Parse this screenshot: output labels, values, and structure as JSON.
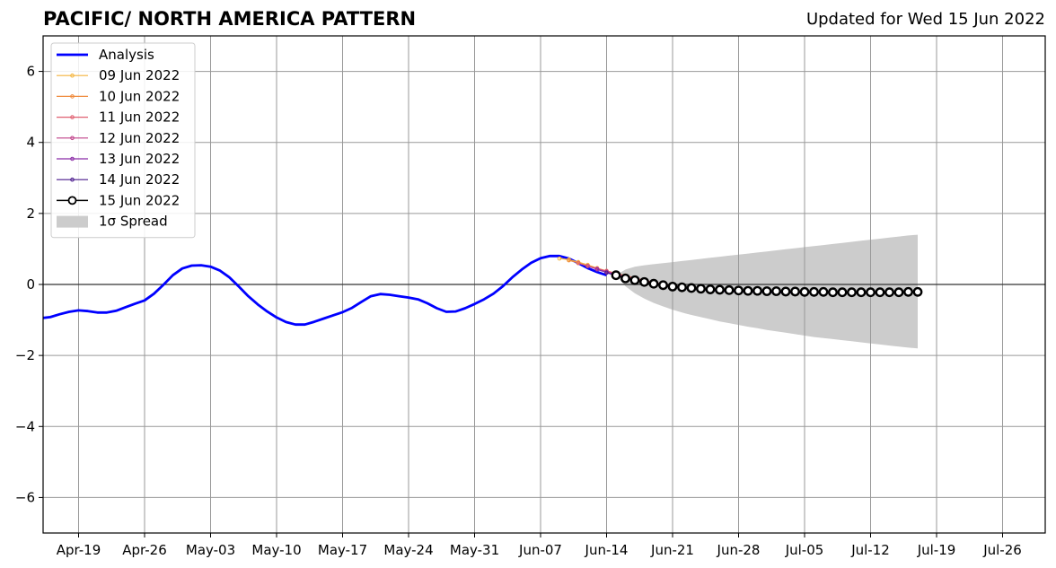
{
  "title": "PACIFIC/ NORTH AMERICA PATTERN",
  "updated": "Updated for Wed 15 Jun 2022",
  "colors": {
    "analysis": "#0000ff",
    "spread": "#cccccc",
    "grid": "#999999",
    "forecast_15": "#000000"
  },
  "chart_data": {
    "type": "line",
    "title": "PACIFIC/ NORTH AMERICA PATTERN",
    "xlabel": "",
    "ylabel": "",
    "xlim": [
      "2022-04-15",
      "2022-07-31"
    ],
    "ylim": [
      -7,
      7
    ],
    "grid": true,
    "legend_position": "top-left",
    "x_ticks": [
      {
        "date": "2022-04-19",
        "label": "Apr-19"
      },
      {
        "date": "2022-04-26",
        "label": "Apr-26"
      },
      {
        "date": "2022-05-03",
        "label": "May-03"
      },
      {
        "date": "2022-05-10",
        "label": "May-10"
      },
      {
        "date": "2022-05-17",
        "label": "May-17"
      },
      {
        "date": "2022-05-24",
        "label": "May-24"
      },
      {
        "date": "2022-05-31",
        "label": "May-31"
      },
      {
        "date": "2022-06-07",
        "label": "Jun-07"
      },
      {
        "date": "2022-06-14",
        "label": "Jun-14"
      },
      {
        "date": "2022-06-21",
        "label": "Jun-21"
      },
      {
        "date": "2022-06-28",
        "label": "Jun-28"
      },
      {
        "date": "2022-07-05",
        "label": "Jul-05"
      },
      {
        "date": "2022-07-12",
        "label": "Jul-12"
      },
      {
        "date": "2022-07-19",
        "label": "Jul-19"
      },
      {
        "date": "2022-07-26",
        "label": "Jul-26"
      }
    ],
    "y_ticks": [
      {
        "value": 6,
        "label": "6"
      },
      {
        "value": 4,
        "label": "4"
      },
      {
        "value": 2,
        "label": "2"
      },
      {
        "value": 0,
        "label": "0"
      },
      {
        "value": -2,
        "label": "−2"
      },
      {
        "value": -4,
        "label": "−4"
      },
      {
        "value": -6,
        "label": "−6"
      }
    ],
    "series": [
      {
        "name": "Analysis",
        "color": "#0000ff",
        "style": "line",
        "start": "2022-04-15",
        "values": [
          -0.95,
          -0.92,
          -0.84,
          -0.77,
          -0.73,
          -0.75,
          -0.79,
          -0.79,
          -0.74,
          -0.64,
          -0.54,
          -0.45,
          -0.26,
          -0.01,
          0.26,
          0.45,
          0.53,
          0.54,
          0.5,
          0.39,
          0.2,
          -0.06,
          -0.33,
          -0.56,
          -0.76,
          -0.93,
          -1.06,
          -1.13,
          -1.13,
          -1.05,
          -0.96,
          -0.87,
          -0.78,
          -0.66,
          -0.49,
          -0.33,
          -0.27,
          -0.29,
          -0.33,
          -0.37,
          -0.42,
          -0.53,
          -0.67,
          -0.77,
          -0.76,
          -0.67,
          -0.55,
          -0.42,
          -0.26,
          -0.05,
          0.2,
          0.42,
          0.61,
          0.74,
          0.8,
          0.8,
          0.73,
          0.6,
          0.46,
          0.35,
          0.26
        ]
      },
      {
        "name": "09 Jun 2022",
        "color": "#f4b43c",
        "style": "small-marker",
        "start": "2022-06-09",
        "values": [
          0.73,
          0.7,
          0.63,
          0.55,
          0.46,
          0.38,
          0.31,
          0.25,
          0.18,
          0.12,
          0.06,
          0.01,
          -0.04,
          -0.08,
          -0.1,
          -0.12,
          -0.14,
          -0.15,
          -0.16,
          -0.17,
          -0.18,
          -0.19,
          -0.19,
          -0.2,
          -0.2,
          -0.21,
          -0.21,
          -0.21,
          -0.21,
          -0.21,
          -0.21,
          -0.21
        ]
      },
      {
        "name": "10 Jun 2022",
        "color": "#ef8a3c",
        "style": "small-marker",
        "start": "2022-06-10",
        "values": [
          0.68,
          0.61,
          0.52,
          0.44,
          0.36,
          0.29,
          0.22,
          0.16,
          0.1,
          0.05,
          0.0,
          -0.05,
          -0.09,
          -0.12,
          -0.14,
          -0.16,
          -0.17,
          -0.18,
          -0.19,
          -0.2,
          -0.2,
          -0.21,
          -0.21,
          -0.22,
          -0.22,
          -0.22,
          -0.22,
          -0.22,
          -0.22,
          -0.22,
          -0.22,
          -0.22
        ]
      },
      {
        "name": "11 Jun 2022",
        "color": "#e06070",
        "style": "small-marker",
        "start": "2022-06-11",
        "values": [
          0.6,
          0.52,
          0.45,
          0.38,
          0.31,
          0.24,
          0.18,
          0.12,
          0.06,
          0.01,
          -0.04,
          -0.08,
          -0.11,
          -0.14,
          -0.16,
          -0.17,
          -0.18,
          -0.19,
          -0.2,
          -0.21,
          -0.21,
          -0.22,
          -0.22,
          -0.22,
          -0.22,
          -0.22,
          -0.23,
          -0.23,
          -0.23,
          -0.23,
          -0.23,
          -0.23
        ]
      },
      {
        "name": "12 Jun 2022",
        "color": "#c0428a",
        "style": "small-marker",
        "start": "2022-06-12",
        "values": [
          0.52,
          0.43,
          0.36,
          0.29,
          0.22,
          0.15,
          0.09,
          0.04,
          -0.01,
          -0.05,
          -0.09,
          -0.12,
          -0.15,
          -0.17,
          -0.18,
          -0.19,
          -0.2,
          -0.21,
          -0.21,
          -0.22,
          -0.22,
          -0.22,
          -0.23,
          -0.23,
          -0.23,
          -0.23,
          -0.23,
          -0.23,
          -0.23,
          -0.23,
          -0.23,
          -0.23
        ]
      },
      {
        "name": "13 Jun 2022",
        "color": "#8a2ba6",
        "style": "small-marker",
        "start": "2022-06-13",
        "values": [
          0.42,
          0.34,
          0.27,
          0.2,
          0.13,
          0.07,
          0.02,
          -0.03,
          -0.07,
          -0.1,
          -0.13,
          -0.15,
          -0.17,
          -0.19,
          -0.2,
          -0.21,
          -0.21,
          -0.22,
          -0.22,
          -0.23,
          -0.23,
          -0.23,
          -0.23,
          -0.23,
          -0.24,
          -0.24,
          -0.24,
          -0.24,
          -0.24,
          -0.24,
          -0.24,
          -0.24
        ]
      },
      {
        "name": "14 Jun 2022",
        "color": "#4a1a8c",
        "style": "small-marker",
        "start": "2022-06-14",
        "values": [
          0.33,
          0.25,
          0.18,
          0.12,
          0.06,
          0.01,
          -0.03,
          -0.07,
          -0.1,
          -0.13,
          -0.15,
          -0.17,
          -0.19,
          -0.2,
          -0.21,
          -0.22,
          -0.22,
          -0.23,
          -0.23,
          -0.23,
          -0.24,
          -0.24,
          -0.24,
          -0.24,
          -0.24,
          -0.24,
          -0.24,
          -0.24,
          -0.24,
          -0.24,
          -0.24,
          -0.24
        ]
      },
      {
        "name": "15 Jun 2022",
        "color": "#000000",
        "style": "open-circle",
        "start": "2022-06-15",
        "values": [
          0.26,
          0.17,
          0.12,
          0.07,
          0.02,
          -0.02,
          -0.06,
          -0.08,
          -0.1,
          -0.12,
          -0.14,
          -0.15,
          -0.16,
          -0.17,
          -0.18,
          -0.18,
          -0.19,
          -0.19,
          -0.2,
          -0.2,
          -0.21,
          -0.21,
          -0.21,
          -0.22,
          -0.22,
          -0.22,
          -0.22,
          -0.22,
          -0.22,
          -0.22,
          -0.22,
          -0.21,
          -0.21
        ]
      }
    ],
    "spread": {
      "name": "1σ Spread",
      "color": "#cccccc",
      "start": "2022-06-15",
      "upper": [
        0.26,
        0.42,
        0.5,
        0.54,
        0.57,
        0.6,
        0.63,
        0.66,
        0.69,
        0.72,
        0.75,
        0.78,
        0.81,
        0.84,
        0.87,
        0.9,
        0.93,
        0.96,
        0.99,
        1.02,
        1.05,
        1.08,
        1.11,
        1.14,
        1.17,
        1.2,
        1.23,
        1.26,
        1.29,
        1.32,
        1.35,
        1.38,
        1.4
      ],
      "lower": [
        0.26,
        -0.05,
        -0.25,
        -0.4,
        -0.52,
        -0.62,
        -0.71,
        -0.79,
        -0.86,
        -0.92,
        -0.98,
        -1.04,
        -1.09,
        -1.14,
        -1.19,
        -1.23,
        -1.28,
        -1.32,
        -1.36,
        -1.4,
        -1.44,
        -1.48,
        -1.51,
        -1.54,
        -1.57,
        -1.6,
        -1.63,
        -1.66,
        -1.69,
        -1.72,
        -1.75,
        -1.78,
        -1.8
      ]
    }
  }
}
